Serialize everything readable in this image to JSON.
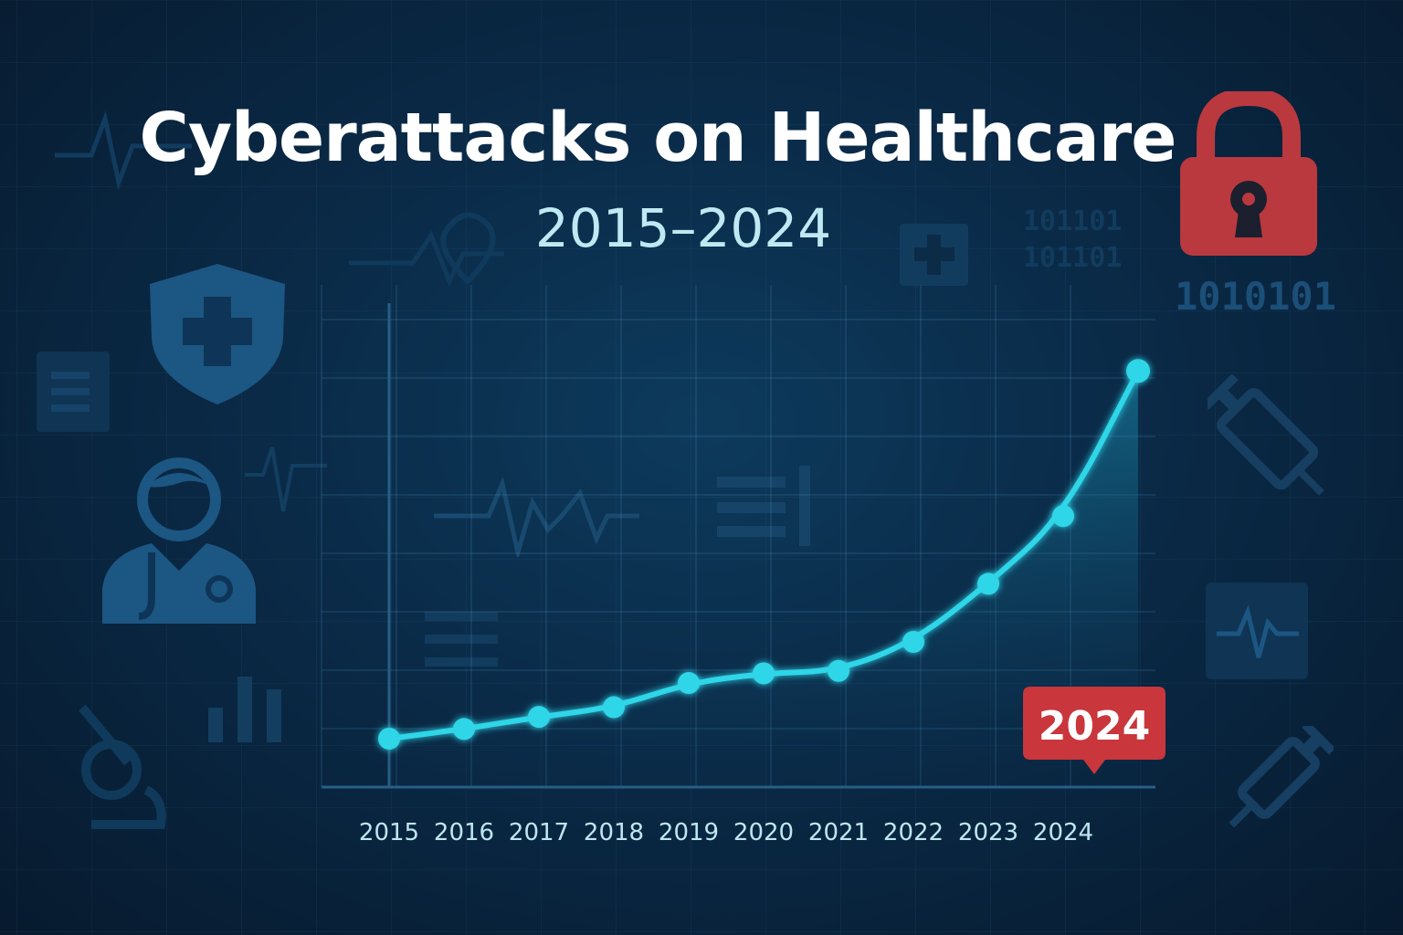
{
  "title": "Cyberattacks on Healthcare",
  "subtitle": "2015–2024",
  "binary_text": "1010101",
  "callout_label": "2024",
  "colors": {
    "line": "#2fd6e8",
    "callout": "#c9363c",
    "lock": "#b9393e",
    "background": "#0a2a47"
  },
  "icons": [
    "shield-medical-icon",
    "doctor-icon",
    "lock-icon",
    "syringe-icon",
    "heartbeat-icon",
    "bar-chart-icon",
    "document-icon"
  ],
  "chart_data": {
    "type": "line",
    "title": "Cyberattacks on Healthcare",
    "subtitle": "2015–2024",
    "xlabel": "",
    "ylabel": "",
    "categories": [
      "2015",
      "2016",
      "2017",
      "2018",
      "2019",
      "2020",
      "2021",
      "2022",
      "2023",
      "2024"
    ],
    "values": [
      10,
      12,
      14.5,
      16.5,
      21.5,
      23.5,
      24,
      30,
      42,
      56
    ],
    "extrapolated_endpoint": 86,
    "ylim": [
      0,
      100
    ],
    "grid": true,
    "legend": "none",
    "highlight": "2024"
  }
}
